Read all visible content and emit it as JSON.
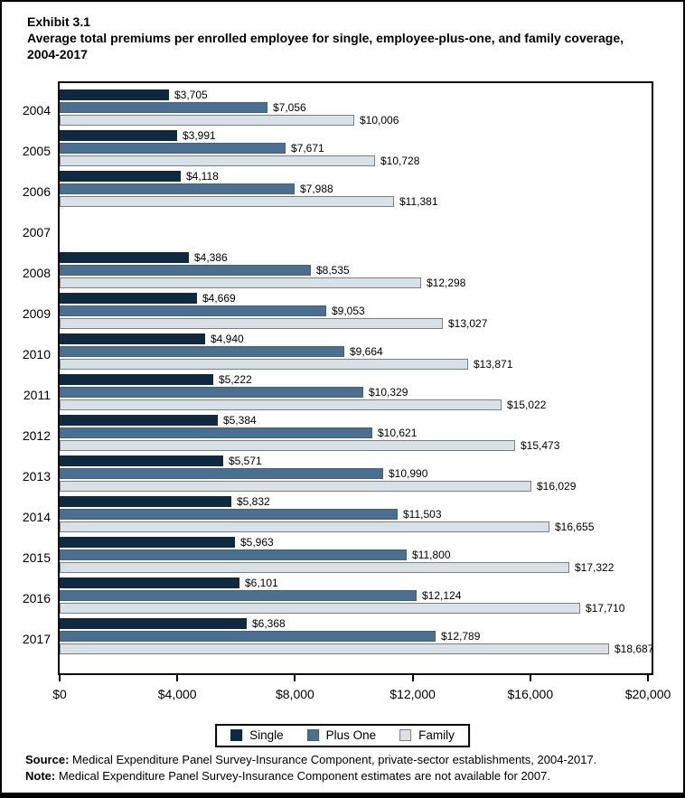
{
  "header": {
    "exhibit": "Exhibit 3.1",
    "title": "Average total premiums per enrolled employee for single, employee-plus-one, and family coverage, 2004-2017"
  },
  "chart_data": {
    "type": "bar",
    "orientation": "horizontal",
    "title": "Average total premiums per enrolled employee for single, employee-plus-one, and family coverage, 2004-2017",
    "categories": [
      "2004",
      "2005",
      "2006",
      "2007",
      "2008",
      "2009",
      "2010",
      "2011",
      "2012",
      "2013",
      "2014",
      "2015",
      "2016",
      "2017"
    ],
    "series": [
      {
        "name": "Single",
        "color": "#0f2940",
        "border_color": "#0f2940",
        "values": [
          3705,
          3991,
          4118,
          null,
          4386,
          4669,
          4940,
          5222,
          5384,
          5571,
          5832,
          5963,
          6101,
          6368
        ],
        "labels": [
          "$3,705",
          "$3,991",
          "$4,118",
          "",
          "$4,386",
          "$4,669",
          "$4,940",
          "$5,222",
          "$5,384",
          "$5,571",
          "$5,832",
          "$5,963",
          "$6,101",
          "$6,368"
        ]
      },
      {
        "name": "Plus One",
        "color": "#4a6f91",
        "border_color": "#3f6283",
        "values": [
          7056,
          7671,
          7988,
          null,
          8535,
          9053,
          9664,
          10329,
          10621,
          10990,
          11503,
          11800,
          12124,
          12789
        ],
        "labels": [
          "$7,056",
          "$7,671",
          "$7,988",
          "",
          "$8,535",
          "$9,053",
          "$9,664",
          "$10,329",
          "$10,621",
          "$10,990",
          "$11,503",
          "$11,800",
          "$12,124",
          "$12,789"
        ]
      },
      {
        "name": "Family",
        "color": "#d9e1e8",
        "border_color": "#7f7f7f",
        "values": [
          10006,
          10728,
          11381,
          null,
          12298,
          13027,
          13871,
          15022,
          15473,
          16029,
          16655,
          17322,
          17710,
          18687
        ],
        "labels": [
          "$10,006",
          "$10,728",
          "$11,381",
          "",
          "$12,298",
          "$13,027",
          "$13,871",
          "$15,022",
          "$15,473",
          "$16,029",
          "$16,655",
          "$17,322",
          "$17,710",
          "$18,687"
        ]
      }
    ],
    "xlim": [
      0,
      20000
    ],
    "x_ticks": [
      {
        "value": 0,
        "label": "$0"
      },
      {
        "value": 4000,
        "label": "$4,000"
      },
      {
        "value": 8000,
        "label": "$8,000"
      },
      {
        "value": 12000,
        "label": "$12,000"
      },
      {
        "value": 16000,
        "label": "$16,000"
      },
      {
        "value": 20000,
        "label": "$20,000"
      }
    ],
    "grid": false,
    "legend_position": "bottom",
    "missing_data_categories": [
      "2007"
    ]
  },
  "legend": {
    "items": [
      {
        "label": "Single",
        "color": "#0f2940",
        "border_color": "#0f2940"
      },
      {
        "label": "Plus One",
        "color": "#4a6f91",
        "border_color": "#3f6283"
      },
      {
        "label": "Family",
        "color": "#d9e1e8",
        "border_color": "#7f7f7f"
      }
    ]
  },
  "footer": {
    "source_label": "Source:",
    "source_text": "Medical Expenditure Panel Survey-Insurance Component, private-sector establishments, 2004-2017.",
    "note_label": "Note:",
    "note_text": "Medical Expenditure Panel Survey-Insurance Component estimates are not available for 2007."
  }
}
